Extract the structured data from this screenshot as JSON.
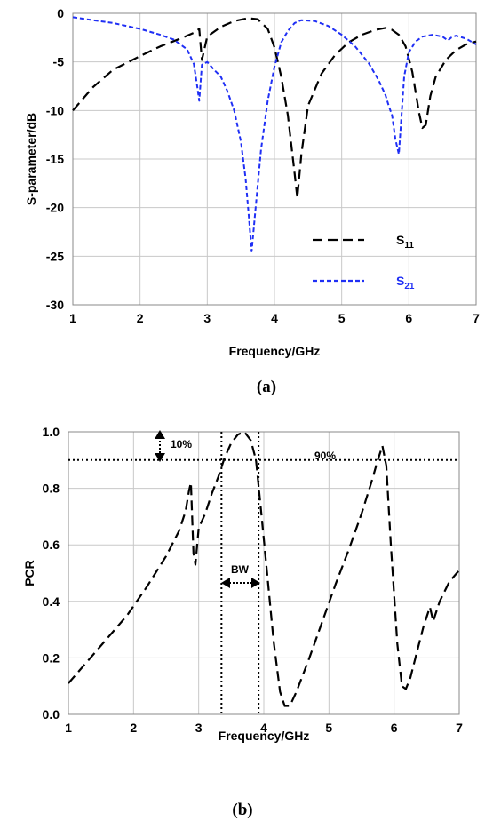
{
  "chart_data": [
    {
      "type": "line",
      "panel_label": "(a)",
      "xlabel": "Frequency/GHz",
      "ylabel": "S-parameter/dB",
      "xlim": [
        1,
        7
      ],
      "ylim": [
        -30,
        0
      ],
      "xticks": [
        1,
        2,
        3,
        4,
        5,
        6,
        7
      ],
      "yticks": [
        0,
        -5,
        -10,
        -15,
        -20,
        -25,
        -30
      ],
      "grid": true,
      "legend_position": "bottom-right",
      "series": [
        {
          "name": "S11",
          "name_main": "S",
          "name_sub": "11",
          "color": "#000000",
          "style": "long-dash",
          "points": [
            [
              1.0,
              -10.0
            ],
            [
              1.3,
              -7.6
            ],
            [
              1.6,
              -5.8
            ],
            [
              2.0,
              -4.4
            ],
            [
              2.3,
              -3.4
            ],
            [
              2.6,
              -2.6
            ],
            [
              2.8,
              -2.0
            ],
            [
              2.88,
              -1.6
            ],
            [
              2.92,
              -4.8
            ],
            [
              3.0,
              -2.4
            ],
            [
              3.2,
              -1.4
            ],
            [
              3.4,
              -0.8
            ],
            [
              3.6,
              -0.5
            ],
            [
              3.75,
              -0.6
            ],
            [
              3.9,
              -1.6
            ],
            [
              4.0,
              -3.5
            ],
            [
              4.1,
              -6.5
            ],
            [
              4.2,
              -10.5
            ],
            [
              4.3,
              -16.5
            ],
            [
              4.34,
              -19.0
            ],
            [
              4.4,
              -14.5
            ],
            [
              4.5,
              -9.5
            ],
            [
              4.7,
              -6.2
            ],
            [
              4.9,
              -4.3
            ],
            [
              5.1,
              -3.0
            ],
            [
              5.3,
              -2.2
            ],
            [
              5.5,
              -1.7
            ],
            [
              5.65,
              -1.5
            ],
            [
              5.75,
              -1.7
            ],
            [
              5.85,
              -2.2
            ],
            [
              5.95,
              -3.4
            ],
            [
              6.05,
              -6.0
            ],
            [
              6.15,
              -10.2
            ],
            [
              6.2,
              -11.8
            ],
            [
              6.25,
              -11.5
            ],
            [
              6.32,
              -8.5
            ],
            [
              6.4,
              -6.5
            ],
            [
              6.55,
              -4.8
            ],
            [
              6.7,
              -3.8
            ],
            [
              6.85,
              -3.2
            ],
            [
              7.0,
              -2.9
            ]
          ]
        },
        {
          "name": "S21",
          "name_main": "S",
          "name_sub": "21",
          "color": "#1f2ff5",
          "style": "short-dash",
          "points": [
            [
              1.0,
              -0.4
            ],
            [
              1.3,
              -0.7
            ],
            [
              1.6,
              -1.0
            ],
            [
              2.0,
              -1.6
            ],
            [
              2.3,
              -2.2
            ],
            [
              2.5,
              -2.7
            ],
            [
              2.7,
              -3.7
            ],
            [
              2.8,
              -5.2
            ],
            [
              2.85,
              -7.5
            ],
            [
              2.88,
              -9.0
            ],
            [
              2.92,
              -5.3
            ],
            [
              3.0,
              -5.0
            ],
            [
              3.1,
              -5.8
            ],
            [
              3.2,
              -6.5
            ],
            [
              3.3,
              -8.0
            ],
            [
              3.4,
              -10.0
            ],
            [
              3.5,
              -13.2
            ],
            [
              3.57,
              -17.0
            ],
            [
              3.62,
              -21.0
            ],
            [
              3.66,
              -24.5
            ],
            [
              3.72,
              -20.0
            ],
            [
              3.8,
              -14.0
            ],
            [
              3.9,
              -9.0
            ],
            [
              4.0,
              -5.5
            ],
            [
              4.1,
              -3.0
            ],
            [
              4.2,
              -1.8
            ],
            [
              4.3,
              -1.0
            ],
            [
              4.4,
              -0.7
            ],
            [
              4.6,
              -0.8
            ],
            [
              4.8,
              -1.3
            ],
            [
              5.0,
              -2.2
            ],
            [
              5.2,
              -3.4
            ],
            [
              5.4,
              -5.1
            ],
            [
              5.55,
              -6.9
            ],
            [
              5.65,
              -8.4
            ],
            [
              5.7,
              -9.5
            ],
            [
              5.75,
              -10.5
            ],
            [
              5.8,
              -13.0
            ],
            [
              5.85,
              -14.5
            ],
            [
              5.88,
              -11.5
            ],
            [
              5.93,
              -6.5
            ],
            [
              6.0,
              -4.0
            ],
            [
              6.1,
              -2.9
            ],
            [
              6.2,
              -2.4
            ],
            [
              6.35,
              -2.2
            ],
            [
              6.5,
              -2.4
            ],
            [
              6.58,
              -2.8
            ],
            [
              6.63,
              -2.5
            ],
            [
              6.7,
              -2.3
            ],
            [
              6.85,
              -2.6
            ],
            [
              7.0,
              -3.2
            ]
          ]
        }
      ]
    },
    {
      "type": "line",
      "panel_label": "(b)",
      "xlabel": "Frequency/GHz",
      "ylabel": "PCR",
      "xlim": [
        1,
        7
      ],
      "ylim": [
        0,
        1
      ],
      "xticks": [
        1,
        2,
        3,
        4,
        5,
        6,
        7
      ],
      "yticks": [
        "0.0",
        "0.2",
        "0.4",
        "0.6",
        "0.8",
        "1.0"
      ],
      "grid": true,
      "threshold": 0.9,
      "bw_edges": [
        3.35,
        3.92
      ],
      "annotations": {
        "ten_percent": "10%",
        "ninety_percent": "90%",
        "bandwidth": "BW"
      },
      "series": [
        {
          "name": "",
          "color": "#000000",
          "style": "long-dash",
          "points": [
            [
              1.0,
              0.11
            ],
            [
              1.3,
              0.19
            ],
            [
              1.6,
              0.27
            ],
            [
              1.9,
              0.35
            ],
            [
              2.2,
              0.45
            ],
            [
              2.5,
              0.56
            ],
            [
              2.7,
              0.65
            ],
            [
              2.8,
              0.72
            ],
            [
              2.85,
              0.79
            ],
            [
              2.88,
              0.82
            ],
            [
              2.92,
              0.57
            ],
            [
              2.95,
              0.53
            ],
            [
              3.0,
              0.66
            ],
            [
              3.1,
              0.71
            ],
            [
              3.2,
              0.78
            ],
            [
              3.3,
              0.84
            ],
            [
              3.4,
              0.91
            ],
            [
              3.5,
              0.96
            ],
            [
              3.6,
              0.99
            ],
            [
              3.7,
              1.0
            ],
            [
              3.8,
              0.97
            ],
            [
              3.88,
              0.9
            ],
            [
              3.95,
              0.74
            ],
            [
              4.05,
              0.5
            ],
            [
              4.15,
              0.26
            ],
            [
              4.25,
              0.08
            ],
            [
              4.32,
              0.03
            ],
            [
              4.4,
              0.03
            ],
            [
              4.5,
              0.08
            ],
            [
              4.7,
              0.2
            ],
            [
              4.9,
              0.33
            ],
            [
              5.1,
              0.46
            ],
            [
              5.3,
              0.58
            ],
            [
              5.5,
              0.71
            ],
            [
              5.65,
              0.82
            ],
            [
              5.75,
              0.9
            ],
            [
              5.82,
              0.95
            ],
            [
              5.88,
              0.88
            ],
            [
              5.95,
              0.6
            ],
            [
              6.05,
              0.25
            ],
            [
              6.12,
              0.1
            ],
            [
              6.18,
              0.09
            ],
            [
              6.25,
              0.13
            ],
            [
              6.35,
              0.22
            ],
            [
              6.45,
              0.31
            ],
            [
              6.55,
              0.38
            ],
            [
              6.6,
              0.33
            ],
            [
              6.7,
              0.4
            ],
            [
              6.85,
              0.47
            ],
            [
              7.0,
              0.51
            ]
          ]
        }
      ]
    }
  ]
}
